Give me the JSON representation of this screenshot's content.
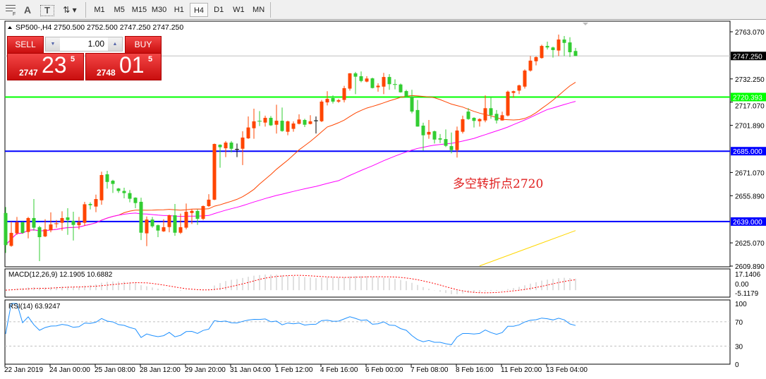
{
  "toolbar": {
    "icons": [
      "crosshair-grid-icon",
      "text-icon",
      "text-label-icon",
      "arrows-icon"
    ],
    "text_icon_glyph": "A",
    "label_icon_glyph": "T",
    "timeframes": [
      "M1",
      "M5",
      "M15",
      "M30",
      "H1",
      "H4",
      "D1",
      "W1",
      "MN"
    ],
    "selected_timeframe": "H4"
  },
  "chart": {
    "header": "SP500-,H4  2750.500 2752.500 2747.250 2747.250",
    "symbol": "SP500-",
    "ohlc": {
      "open": 2750.5,
      "high": 2752.5,
      "low": 2747.25,
      "close": 2747.25
    }
  },
  "trade_panel": {
    "sell_label": "SELL",
    "buy_label": "BUY",
    "volume": "1.00",
    "sell_big": "2747",
    "sell_main": "23",
    "sell_sup": "5",
    "buy_big": "2748",
    "buy_main": "01",
    "buy_sup": "5"
  },
  "annotation": "多空转折点2720",
  "price_axis": [
    "2763.070",
    "2732.250",
    "2717.070",
    "2701.890",
    "2671.070",
    "2655.890",
    "2625.070",
    "2609.890"
  ],
  "price_axis_range": [
    2609.89,
    2763.07
  ],
  "current_price": {
    "label": "2747.250",
    "value": 2747.25,
    "color": "#000000"
  },
  "hlines": [
    {
      "label": "2720.393",
      "value": 2720.393,
      "color": "#00ff00"
    },
    {
      "label": "2685.000",
      "value": 2685.0,
      "color": "#0000ff"
    },
    {
      "label": "2639.000",
      "value": 2639.0,
      "color": "#0000ff"
    }
  ],
  "colors": {
    "bull": "#ff4500",
    "bear": "#32cd32",
    "doji": "#000000",
    "ma_fast": "#ff4500",
    "ma_slow": "#ff00ff",
    "ma_long": "#ffd700",
    "macd_hist": "#c0c0c0",
    "macd_signal": "#ff0000",
    "rsi": "#1e90ff"
  },
  "candles": [
    [
      2644.6,
      2648.5,
      2618.5,
      2623.6
    ],
    [
      2623.1,
      2639.0,
      2622.5,
      2631.6
    ],
    [
      2631.3,
      2642.0,
      2630.3,
      2638.5
    ],
    [
      2638.5,
      2639.0,
      2631.0,
      2631.6
    ],
    [
      2632.2,
      2642.0,
      2628.0,
      2641.3
    ],
    [
      2641.3,
      2653.7,
      2633.1,
      2635.0
    ],
    [
      2635.3,
      2636.2,
      2613.1,
      2628.8
    ],
    [
      2629.3,
      2640.5,
      2628.8,
      2633.9
    ],
    [
      2633.4,
      2645.0,
      2632.0,
      2637.1
    ],
    [
      2637.4,
      2640.0,
      2635.0,
      2637.6
    ],
    [
      2638.2,
      2645.7,
      2633.1,
      2641.3
    ],
    [
      2641.7,
      2647.7,
      2630.3,
      2640.0
    ],
    [
      2639.4,
      2645.4,
      2626.6,
      2636.8
    ],
    [
      2636.6,
      2642.0,
      2633.9,
      2638.5
    ],
    [
      2638.2,
      2651.9,
      2636.2,
      2650.3
    ],
    [
      2650.5,
      2651.6,
      2646.9,
      2649.7
    ],
    [
      2648.8,
      2656.6,
      2645.1,
      2653.7
    ],
    [
      2652.9,
      2671.6,
      2650.0,
      2669.4
    ],
    [
      2669.9,
      2672.2,
      2660.5,
      2664.9
    ],
    [
      2665.7,
      2666.3,
      2657.7,
      2663.6
    ],
    [
      2660.6,
      2661.0,
      2657.7,
      2659.0
    ],
    [
      2659.0,
      2661.1,
      2654.2,
      2657.6
    ],
    [
      2657.6,
      2659.6,
      2651.6,
      2653.9
    ],
    [
      2654.6,
      2654.9,
      2647.7,
      2651.1
    ],
    [
      2651.9,
      2654.6,
      2626.9,
      2631.7
    ],
    [
      2631.3,
      2642.3,
      2622.9,
      2640.3
    ],
    [
      2640.3,
      2642.0,
      2635.0,
      2635.9
    ],
    [
      2636.6,
      2637.0,
      2628.8,
      2633.1
    ],
    [
      2632.6,
      2640.5,
      2632.2,
      2635.3
    ],
    [
      2635.4,
      2643.5,
      2632.0,
      2643.1
    ],
    [
      2643.1,
      2650.5,
      2629.7,
      2631.7
    ],
    [
      2631.7,
      2644.2,
      2630.9,
      2635.3
    ],
    [
      2635.0,
      2650.8,
      2633.9,
      2645.4
    ],
    [
      2644.6,
      2646.9,
      2637.4,
      2646.0
    ],
    [
      2645.9,
      2646.9,
      2636.8,
      2640.8
    ],
    [
      2640.8,
      2649.5,
      2640.0,
      2649.1
    ],
    [
      2649.1,
      2656.9,
      2648.5,
      2653.3
    ],
    [
      2653.3,
      2690.0,
      2653.0,
      2689.7
    ],
    [
      2689.2,
      2689.5,
      2674.2,
      2687.6
    ],
    [
      2686.9,
      2691.6,
      2681.1,
      2690.6
    ],
    [
      2690.6,
      2691.6,
      2684.2,
      2686.6
    ],
    [
      2686.2,
      2690.0,
      2681.1,
      2686.2
    ],
    [
      2686.6,
      2698.0,
      2675.9,
      2693.9
    ],
    [
      2693.4,
      2707.7,
      2693.0,
      2700.5
    ],
    [
      2700.0,
      2712.8,
      2693.1,
      2704.5
    ],
    [
      2704.6,
      2711.2,
      2701.4,
      2704.3
    ],
    [
      2703.7,
      2708.2,
      2701.1,
      2706.8
    ],
    [
      2706.8,
      2708.0,
      2701.5,
      2701.9
    ],
    [
      2702.3,
      2715.4,
      2696.5,
      2704.9
    ],
    [
      2704.9,
      2713.5,
      2697.7,
      2698.2
    ],
    [
      2697.7,
      2705.0,
      2695.4,
      2704.5
    ],
    [
      2699.6,
      2704.5,
      2697.7,
      2703.1
    ],
    [
      2702.9,
      2709.1,
      2702.5,
      2705.7
    ],
    [
      2705.4,
      2706.2,
      2700.8,
      2702.3
    ],
    [
      2702.8,
      2708.5,
      2702.5,
      2704.5
    ],
    [
      2704.9,
      2707.7,
      2696.6,
      2704.9
    ],
    [
      2704.6,
      2718.5,
      2704.0,
      2717.4
    ],
    [
      2716.9,
      2724.2,
      2714.9,
      2719.2
    ],
    [
      2719.7,
      2721.5,
      2716.2,
      2717.4
    ],
    [
      2717.4,
      2719.2,
      2716.6,
      2718.3
    ],
    [
      2718.5,
      2727.7,
      2716.9,
      2726.2
    ],
    [
      2725.9,
      2736.0,
      2724.6,
      2735.9
    ],
    [
      2735.9,
      2736.8,
      2722.3,
      2733.7
    ],
    [
      2734.0,
      2737.1,
      2730.0,
      2730.9
    ],
    [
      2730.5,
      2734.0,
      2730.0,
      2732.5
    ],
    [
      2732.6,
      2733.1,
      2726.0,
      2726.3
    ],
    [
      2726.8,
      2729.4,
      2723.9,
      2727.8
    ],
    [
      2727.2,
      2736.2,
      2722.3,
      2733.5
    ],
    [
      2733.5,
      2735.4,
      2725.1,
      2728.8
    ],
    [
      2728.6,
      2732.0,
      2725.4,
      2728.3
    ],
    [
      2728.6,
      2729.2,
      2723.3,
      2723.5
    ],
    [
      2724.3,
      2725.1,
      2720.5,
      2720.8
    ],
    [
      2720.8,
      2725.1,
      2709.7,
      2710.9
    ],
    [
      2711.9,
      2718.5,
      2701.0,
      2701.1
    ],
    [
      2701.7,
      2703.6,
      2685.4,
      2695.4
    ],
    [
      2695.9,
      2705.4,
      2693.1,
      2697.6
    ],
    [
      2698.0,
      2698.5,
      2690.0,
      2692.6
    ],
    [
      2693.4,
      2696.2,
      2690.3,
      2692.6
    ],
    [
      2692.9,
      2699.2,
      2687.7,
      2688.5
    ],
    [
      2688.3,
      2697.2,
      2683.6,
      2685.7
    ],
    [
      2685.7,
      2701.1,
      2680.8,
      2698.5
    ],
    [
      2697.7,
      2708.2,
      2696.6,
      2705.9
    ],
    [
      2710.9,
      2713.1,
      2705.5,
      2706.0
    ],
    [
      2706.8,
      2707.2,
      2700.5,
      2704.8
    ],
    [
      2704.6,
      2706.5,
      2701.1,
      2706.0
    ],
    [
      2705.1,
      2721.5,
      2703.9,
      2713.1
    ],
    [
      2713.1,
      2720.8,
      2706.2,
      2708.5
    ],
    [
      2709.4,
      2711.9,
      2703.1,
      2705.1
    ],
    [
      2705.1,
      2710.8,
      2705.0,
      2708.5
    ],
    [
      2708.3,
      2724.6,
      2707.7,
      2723.9
    ],
    [
      2723.1,
      2724.6,
      2719.9,
      2724.2
    ],
    [
      2724.6,
      2728.5,
      2722.3,
      2728.0
    ],
    [
      2727.2,
      2738.5,
      2725.9,
      2737.7
    ],
    [
      2737.7,
      2747.2,
      2737.0,
      2744.2
    ],
    [
      2743.8,
      2747.0,
      2741.1,
      2746.5
    ],
    [
      2745.9,
      2754.6,
      2745.5,
      2753.8
    ],
    [
      2753.8,
      2756.6,
      2751.5,
      2752.8
    ],
    [
      2752.8,
      2753.3,
      2746.2,
      2751.1
    ],
    [
      2750.8,
      2761.2,
      2747.2,
      2758.0
    ],
    [
      2758.0,
      2760.3,
      2747.2,
      2755.8
    ],
    [
      2756.1,
      2759.5,
      2746.6,
      2749.7
    ],
    [
      2750.5,
      2752.5,
      2747.25,
      2747.25
    ]
  ],
  "ma_long_points": [
    {
      "bar": 84,
      "value": 2610.0
    },
    {
      "bar": 101,
      "value": 2633.1
    }
  ],
  "macd": {
    "label": "MACD(12,26,9) 12.1905 10.6882",
    "axis": [
      "17.1406",
      "0.00",
      "-5.1179"
    ],
    "range": [
      -5.1179,
      17.1406
    ]
  },
  "rsi": {
    "label": "RSI(14) 63.9247",
    "axis": [
      "100",
      "70",
      "30",
      "0"
    ],
    "levels": [
      70,
      30
    ]
  },
  "time_axis": [
    "22 Jan 2019",
    "24 Jan 00:00",
    "25 Jan 08:00",
    "28 Jan 12:00",
    "29 Jan 20:00",
    "31 Jan 04:00",
    "1 Feb 12:00",
    "4 Feb 16:00",
    "6 Feb 00:00",
    "7 Feb 08:00",
    "8 Feb 16:00",
    "11 Feb 20:00",
    "13 Feb 04:00"
  ]
}
